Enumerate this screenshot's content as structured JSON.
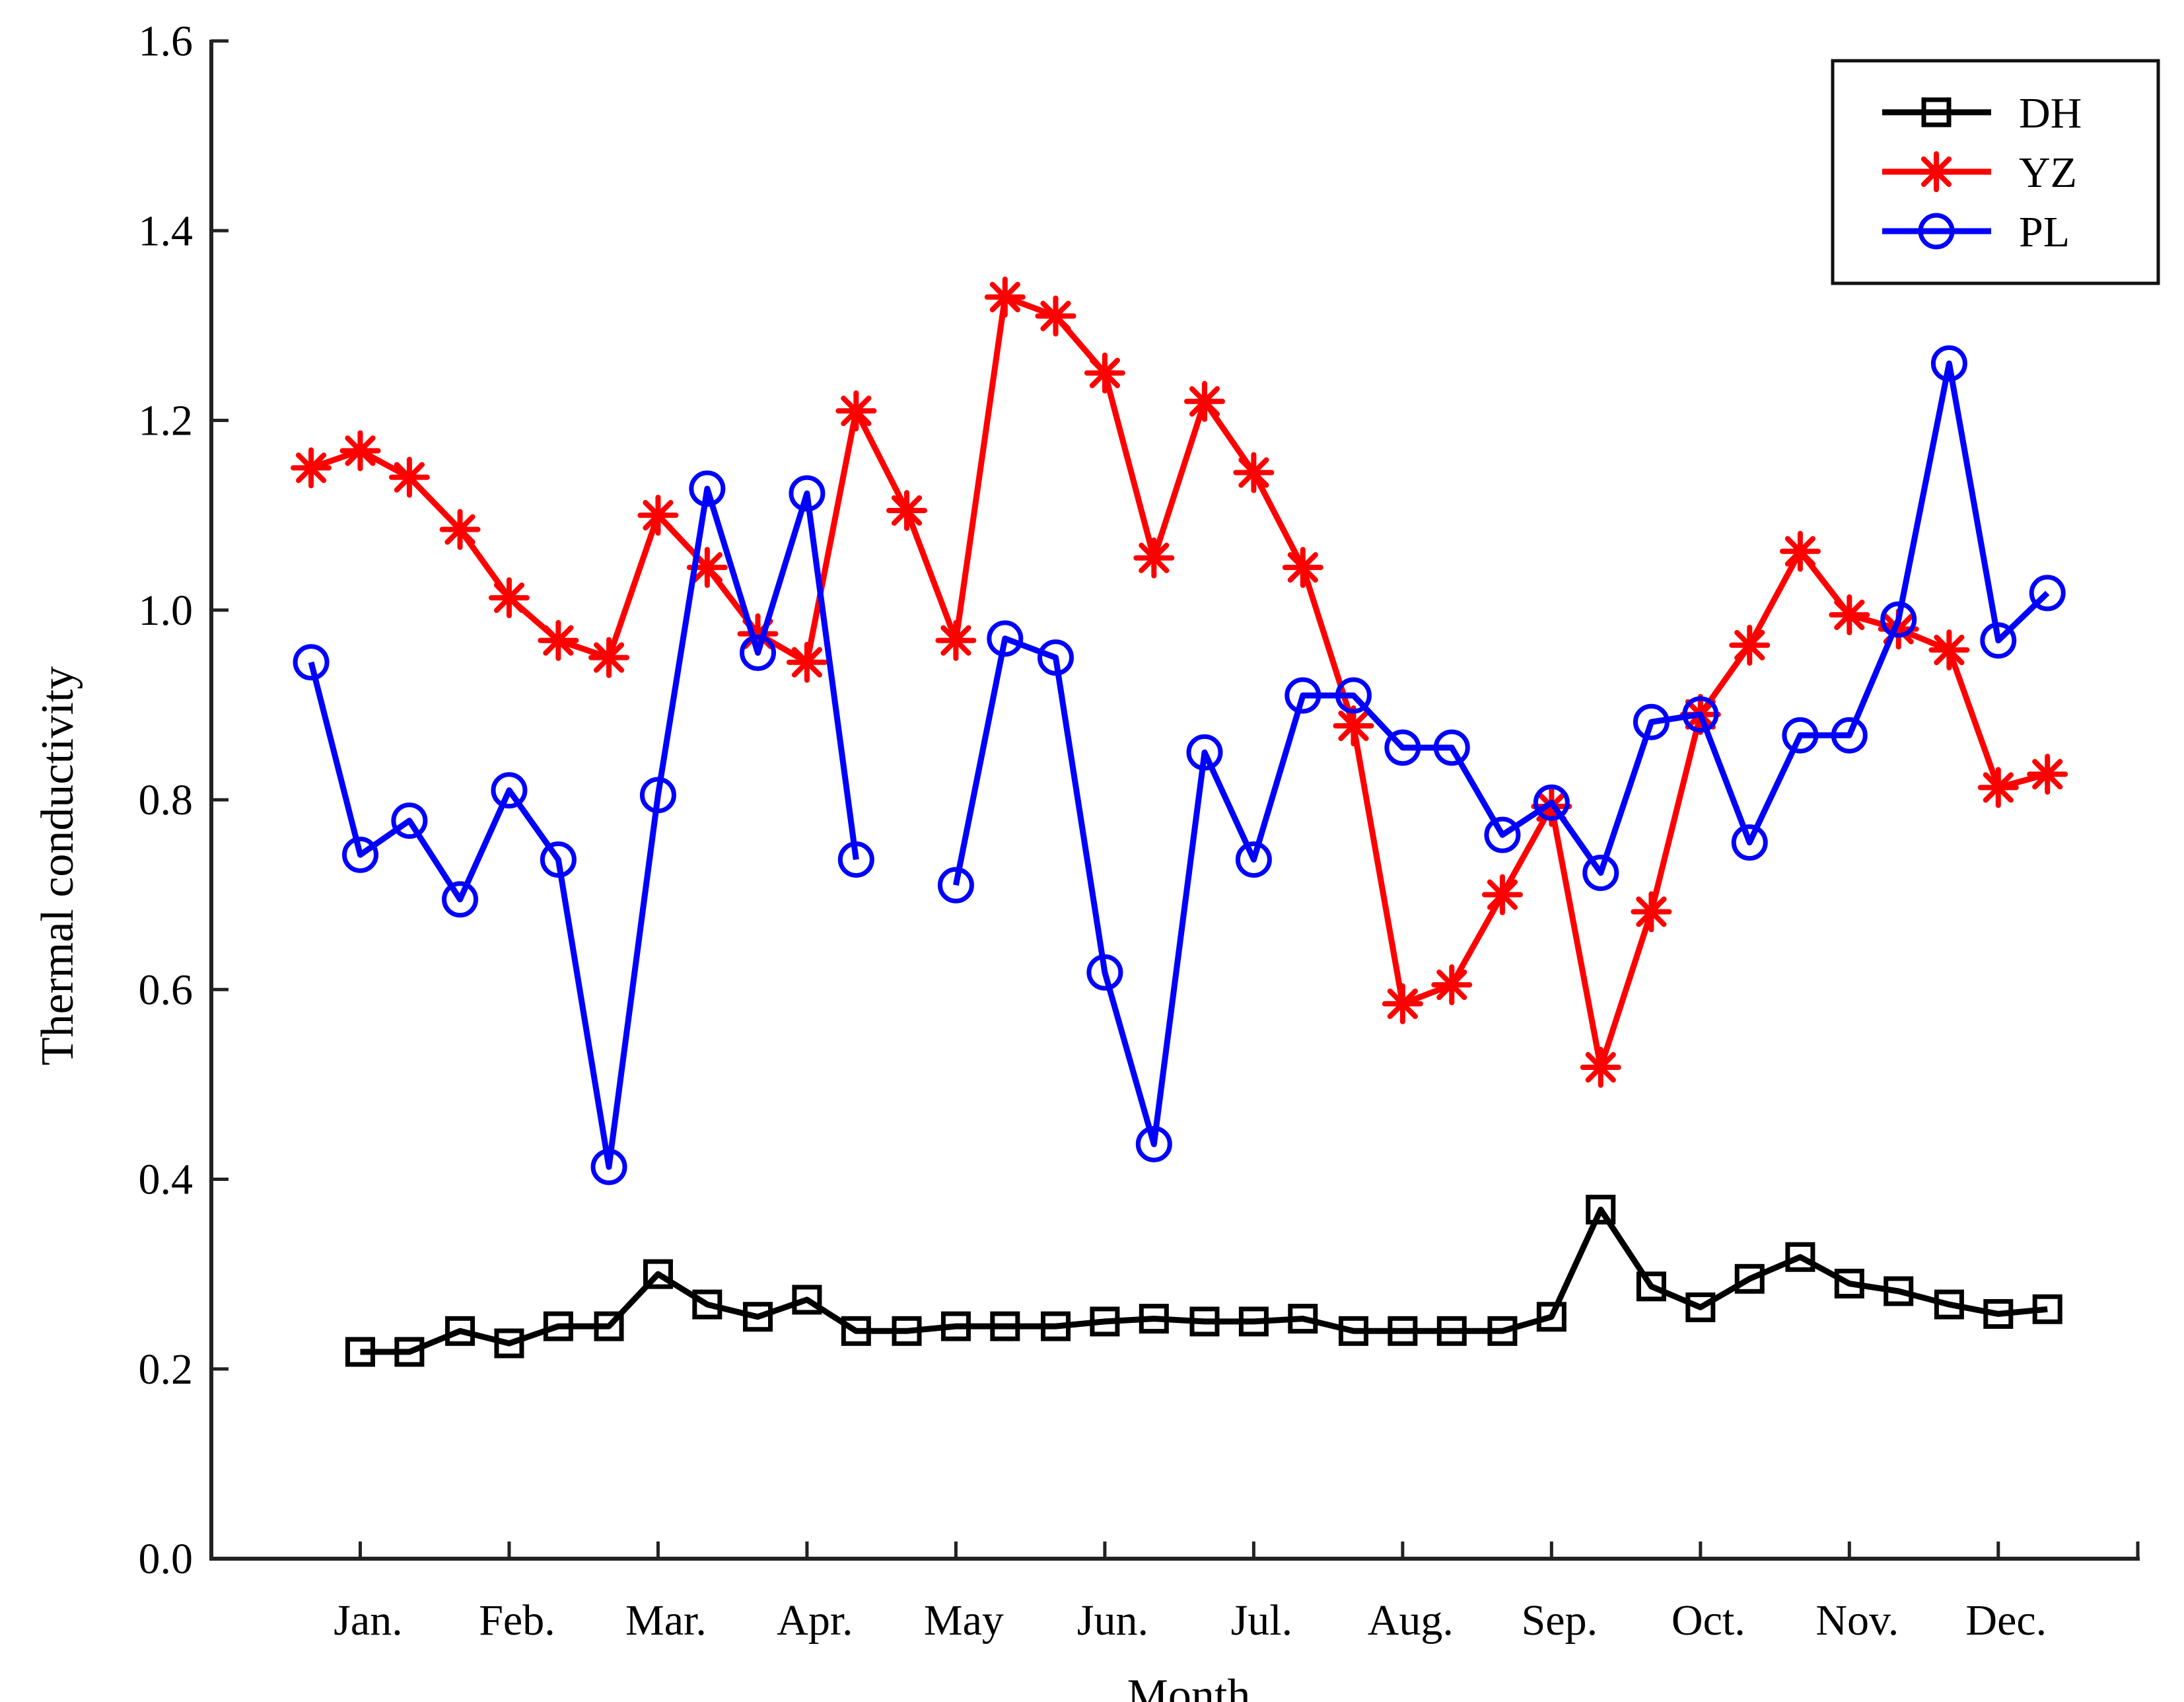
{
  "chart_data": {
    "type": "line",
    "xlabel": "Month",
    "ylabel": "Thermal conductivity",
    "ylim": [
      0.0,
      1.6
    ],
    "yticks": [
      "0.0",
      "0.2",
      "0.4",
      "0.6",
      "0.8",
      "1.0",
      "1.2",
      "1.4",
      "1.6"
    ],
    "months": [
      "Jan.",
      "Feb.",
      "Mar.",
      "Apr.",
      "May",
      "Jun.",
      "Jul.",
      "Aug.",
      "Sep.",
      "Oct.",
      "Nov.",
      "Dec."
    ],
    "grid": false,
    "legend_position": "top-right",
    "series": [
      {
        "name": "DH",
        "color": "#000000",
        "marker": "square",
        "points": [
          [
            1.0,
            0.218
          ],
          [
            1.33,
            0.218
          ],
          [
            1.67,
            0.24
          ],
          [
            2.0,
            0.227
          ],
          [
            2.33,
            0.245
          ],
          [
            2.67,
            0.245
          ],
          [
            3.0,
            0.3
          ],
          [
            3.33,
            0.268
          ],
          [
            3.67,
            0.255
          ],
          [
            4.0,
            0.273
          ],
          [
            4.33,
            0.24
          ],
          [
            4.67,
            0.24
          ],
          [
            5.0,
            0.245
          ],
          [
            5.33,
            0.245
          ],
          [
            5.67,
            0.245
          ],
          [
            6.0,
            0.25
          ],
          [
            6.33,
            0.253
          ],
          [
            6.67,
            0.25
          ],
          [
            7.0,
            0.25
          ],
          [
            7.33,
            0.253
          ],
          [
            7.67,
            0.24
          ],
          [
            8.0,
            0.24
          ],
          [
            8.33,
            0.24
          ],
          [
            8.67,
            0.24
          ],
          [
            9.0,
            0.255
          ],
          [
            9.33,
            0.368
          ],
          [
            9.67,
            0.287
          ],
          [
            10.0,
            0.265
          ],
          [
            10.33,
            0.295
          ],
          [
            10.67,
            0.318
          ],
          [
            11.0,
            0.29
          ],
          [
            11.33,
            0.282
          ],
          [
            11.67,
            0.268
          ],
          [
            12.0,
            0.258
          ],
          [
            12.33,
            0.263
          ]
        ]
      },
      {
        "name": "YZ",
        "color": "#ff0000",
        "marker": "asterisk",
        "points": [
          [
            0.67,
            1.15
          ],
          [
            1.0,
            1.168
          ],
          [
            1.33,
            1.14
          ],
          [
            1.67,
            1.085
          ],
          [
            2.0,
            1.013
          ],
          [
            2.33,
            0.968
          ],
          [
            2.67,
            0.95
          ],
          [
            3.0,
            1.1
          ],
          [
            3.33,
            1.045
          ],
          [
            3.67,
            0.975
          ],
          [
            4.0,
            0.945
          ],
          [
            4.33,
            1.21
          ],
          [
            4.67,
            1.105
          ],
          [
            5.0,
            0.968
          ],
          [
            5.33,
            1.33
          ],
          [
            5.67,
            1.31
          ],
          [
            6.0,
            1.25
          ],
          [
            6.33,
            1.055
          ],
          [
            6.67,
            1.22
          ],
          [
            7.0,
            1.145
          ],
          [
            7.33,
            1.045
          ],
          [
            7.67,
            0.878
          ],
          [
            8.0,
            0.585
          ],
          [
            8.33,
            0.605
          ],
          [
            8.67,
            0.7
          ],
          [
            9.0,
            0.793
          ],
          [
            9.33,
            0.518
          ],
          [
            9.67,
            0.682
          ],
          [
            10.0,
            0.89
          ],
          [
            10.33,
            0.963
          ],
          [
            10.67,
            1.062
          ],
          [
            11.0,
            0.995
          ],
          [
            11.33,
            0.98
          ],
          [
            11.67,
            0.958
          ],
          [
            12.0,
            0.813
          ],
          [
            12.33,
            0.827
          ]
        ]
      },
      {
        "name": "PL",
        "color": "#0000ff",
        "marker": "circle",
        "segments": [
          [
            [
              0.67,
              0.945
            ],
            [
              1.0,
              0.742
            ],
            [
              1.33,
              0.778
            ],
            [
              1.67,
              0.695
            ],
            [
              2.0,
              0.81
            ],
            [
              2.33,
              0.737
            ],
            [
              2.67,
              0.413
            ],
            [
              3.0,
              0.805
            ],
            [
              3.33,
              1.128
            ],
            [
              3.67,
              0.955
            ],
            [
              4.0,
              1.123
            ],
            [
              4.33,
              0.737
            ]
          ],
          [
            [
              5.0,
              0.71
            ],
            [
              5.33,
              0.97
            ],
            [
              5.67,
              0.95
            ],
            [
              6.0,
              0.618
            ],
            [
              6.33,
              0.437
            ],
            [
              6.67,
              0.85
            ],
            [
              7.0,
              0.737
            ],
            [
              7.33,
              0.91
            ],
            [
              7.67,
              0.91
            ],
            [
              8.0,
              0.855
            ],
            [
              8.33,
              0.855
            ],
            [
              8.67,
              0.763
            ],
            [
              9.0,
              0.797
            ],
            [
              9.33,
              0.723
            ],
            [
              9.67,
              0.882
            ],
            [
              10.0,
              0.89
            ],
            [
              10.33,
              0.755
            ],
            [
              10.67,
              0.868
            ],
            [
              11.0,
              0.868
            ],
            [
              11.33,
              0.99
            ],
            [
              11.67,
              1.26
            ],
            [
              12.0,
              0.968
            ],
            [
              12.33,
              1.018
            ]
          ]
        ]
      }
    ]
  }
}
